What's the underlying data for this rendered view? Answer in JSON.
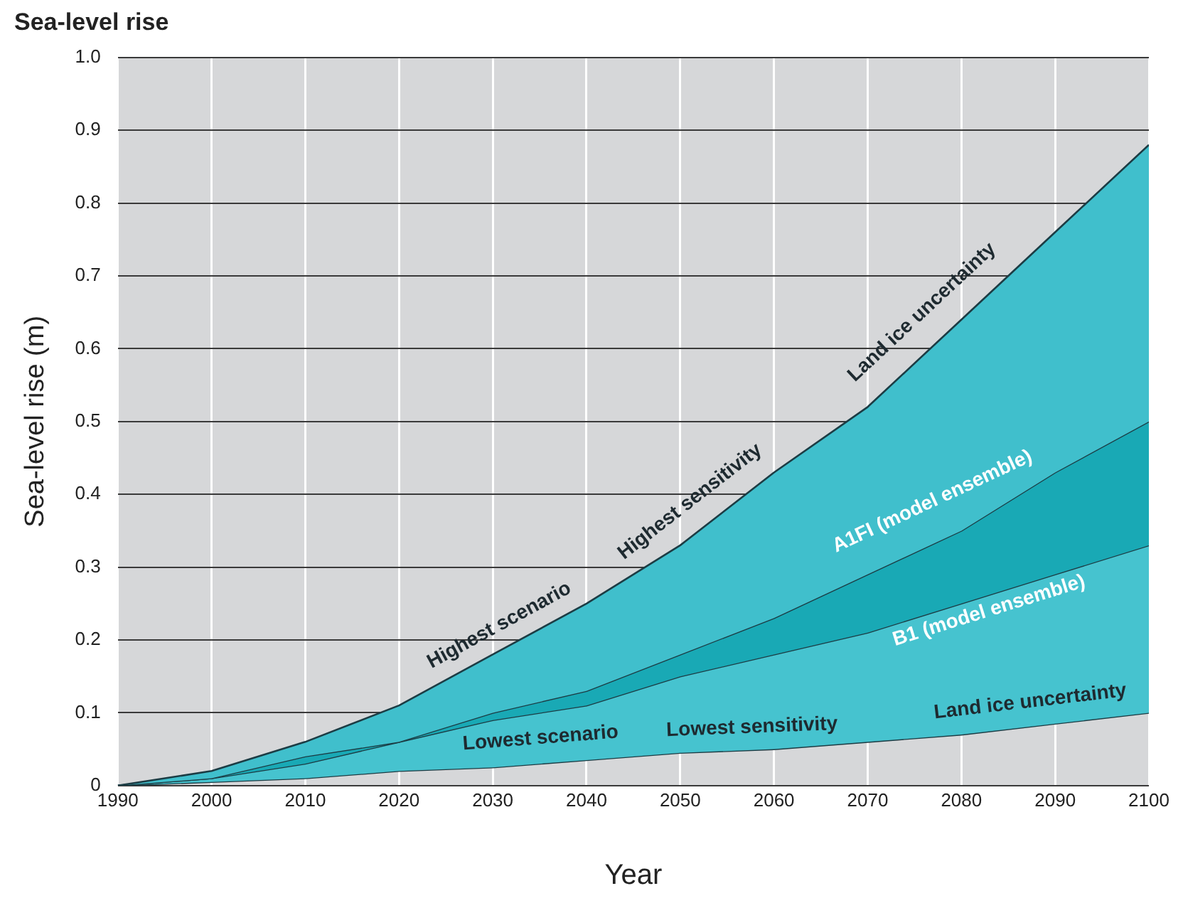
{
  "chart_data": {
    "type": "area",
    "title": "Sea-level rise",
    "xlabel": "Year",
    "ylabel": "Sea-level rise (m)",
    "x": [
      1990,
      2000,
      2010,
      2020,
      2030,
      2040,
      2050,
      2060,
      2070,
      2080,
      2090,
      2100
    ],
    "series": [
      {
        "color": "#40bfcc",
        "values": [
          0,
          0.02,
          0.06,
          0.11,
          0.18,
          0.25,
          0.33,
          0.43,
          0.52,
          0.64,
          0.76,
          0.88
        ]
      },
      {
        "color": "#19a9b5",
        "values": [
          0,
          0.01,
          0.04,
          0.06,
          0.1,
          0.13,
          0.18,
          0.23,
          0.29,
          0.35,
          0.43,
          0.5
        ]
      },
      {
        "color": "#46c3cf",
        "values": [
          0,
          0.01,
          0.03,
          0.06,
          0.09,
          0.11,
          0.15,
          0.18,
          0.21,
          0.25,
          0.29,
          0.33
        ]
      },
      {
        "type": "line",
        "color": "#1c3c44",
        "values": [
          0,
          0.005,
          0.01,
          0.02,
          0.025,
          0.035,
          0.045,
          0.05,
          0.06,
          0.07,
          0.085,
          0.1
        ]
      }
    ],
    "xlim": [
      1990,
      2100
    ],
    "xticks": [
      1990,
      2000,
      2010,
      2020,
      2030,
      2040,
      2050,
      2060,
      2070,
      2080,
      2090,
      2100
    ],
    "ylim": [
      0,
      1
    ],
    "yticks": [
      0,
      0.1,
      0.2,
      0.3,
      0.4,
      0.5,
      0.6,
      0.7,
      0.8,
      0.9,
      {
        "value": 1,
        "label": "1.0"
      }
    ],
    "grid": true,
    "legend": false,
    "marker": "none",
    "line_style": "solid",
    "annotations": [
      "Highest scenario",
      "Highest sensitivity",
      "Land ice uncertainty",
      "A1FI (model ensemble)",
      "B1 (model ensemble)",
      "Lowest scenario",
      "Lowest sensitivity",
      "Land ice uncertainty"
    ]
  }
}
